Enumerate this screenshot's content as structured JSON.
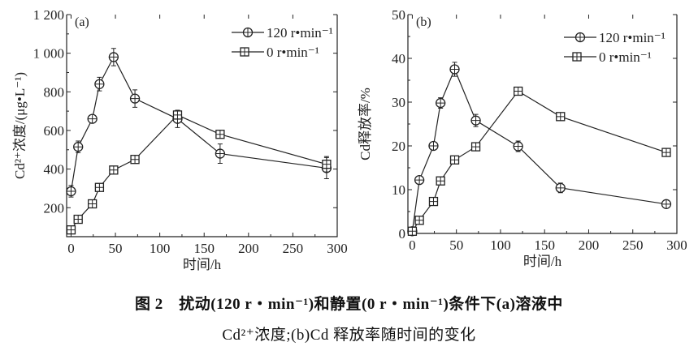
{
  "chart_data": [
    {
      "type": "line",
      "panel_label": "(a)",
      "xlabel": "时间/h",
      "ylabel": "Cd²⁺浓度/(μg•L⁻¹)",
      "xlim": [
        -5,
        300
      ],
      "ylim": [
        50,
        1200
      ],
      "xticks": [
        0,
        50,
        100,
        150,
        200,
        250,
        300
      ],
      "xtick_labels": [
        "0",
        "50",
        "100",
        "150",
        "200",
        "250",
        "300"
      ],
      "yticks": [
        200,
        400,
        600,
        800,
        1000,
        1200
      ],
      "ytick_labels": [
        "200",
        "400",
        "600",
        "800",
        "1 000",
        "1 200"
      ],
      "grid": false,
      "legend_position": "top-right",
      "x": [
        0,
        8,
        24,
        32,
        48,
        72,
        120,
        168,
        288
      ],
      "series": [
        {
          "name": "120 r•min⁻¹",
          "marker": "circle-plus",
          "values": [
            285,
            515,
            660,
            840,
            980,
            765,
            660,
            480,
            405
          ],
          "errors": [
            30,
            30,
            12,
            35,
            45,
            45,
            45,
            50,
            55
          ]
        },
        {
          "name": "0 r•min⁻¹",
          "marker": "square-plus",
          "values": [
            85,
            140,
            220,
            305,
            395,
            450,
            680,
            580,
            425
          ],
          "errors": [
            10,
            10,
            10,
            10,
            10,
            10,
            15,
            10,
            40
          ]
        }
      ]
    },
    {
      "type": "line",
      "panel_label": "(b)",
      "xlabel": "时间/h",
      "ylabel": "Cd释放率/%",
      "xlim": [
        -5,
        300
      ],
      "ylim": [
        0,
        50
      ],
      "xticks": [
        0,
        50,
        100,
        150,
        200,
        250,
        300
      ],
      "xtick_labels": [
        "0",
        "50",
        "100",
        "150",
        "200",
        "250",
        "300"
      ],
      "yticks": [
        0,
        10,
        20,
        30,
        40,
        50
      ],
      "ytick_labels": [
        "0",
        "10",
        "20",
        "30",
        "40",
        "50"
      ],
      "grid": false,
      "legend_position": "top-right",
      "x": [
        0,
        8,
        24,
        32,
        48,
        72,
        120,
        168,
        288
      ],
      "series": [
        {
          "name": "120 r•min⁻¹",
          "marker": "circle-plus",
          "values": [
            0.5,
            12.2,
            20,
            29.8,
            37.5,
            25.8,
            19.9,
            10.4,
            6.7
          ],
          "errors": [
            0.4,
            0.6,
            0.5,
            1.2,
            1.6,
            1.4,
            1.2,
            1.1,
            0.7
          ]
        },
        {
          "name": "0 r•min⁻¹",
          "marker": "square-plus",
          "values": [
            0.5,
            3,
            7.3,
            12,
            16.8,
            19.8,
            32.5,
            26.7,
            18.5
          ],
          "errors": [
            0.3,
            0.3,
            0.4,
            0.5,
            0.5,
            0.5,
            0.9,
            0.5,
            0.5
          ]
        }
      ]
    }
  ],
  "caption": {
    "line1": "图 2　扰动(120 r・min⁻¹)和静置(0 r・min⁻¹)条件下(a)溶液中",
    "line2": "Cd²⁺浓度;(b)Cd 释放率随时间的变化"
  },
  "colors": {
    "line": "#222222",
    "background": "#ffffff"
  }
}
